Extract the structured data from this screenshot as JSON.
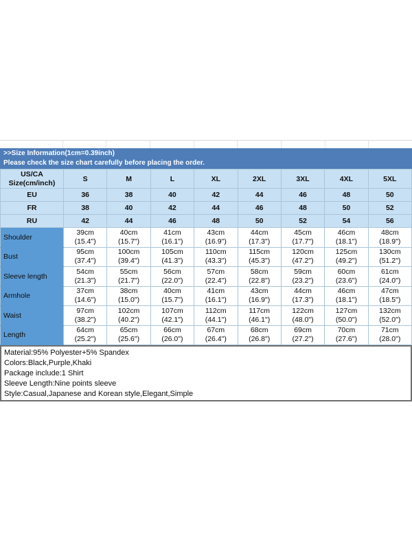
{
  "colors": {
    "banner_blue": "#4e7db8",
    "header_light_blue": "#c8e0f3",
    "row_label_blue": "#5b9bd5",
    "table_border": "#aac4da",
    "details_border": "#6f6f6f"
  },
  "banner": {
    "line1": ">>Size Information(1cm=0.39inch)",
    "line2": "Please check the size chart carefully before placing the order."
  },
  "size_table": {
    "corner_label_line1": "US/CA",
    "corner_label_line2": "Size(cm/inch)",
    "columns": [
      "S",
      "M",
      "L",
      "XL",
      "2XL",
      "3XL",
      "4XL",
      "5XL"
    ],
    "region_rows": [
      {
        "label": "EU",
        "values": [
          "36",
          "38",
          "40",
          "42",
          "44",
          "46",
          "48",
          "50"
        ]
      },
      {
        "label": "FR",
        "values": [
          "38",
          "40",
          "42",
          "44",
          "46",
          "48",
          "50",
          "52"
        ]
      },
      {
        "label": "RU",
        "values": [
          "42",
          "44",
          "46",
          "48",
          "50",
          "52",
          "54",
          "56"
        ]
      }
    ],
    "measurement_rows": [
      {
        "label": "Shoulder",
        "cm": [
          "39cm",
          "40cm",
          "41cm",
          "43cm",
          "44cm",
          "45cm",
          "46cm",
          "48cm"
        ],
        "inch": [
          "(15.4\")",
          "(15.7\")",
          "(16.1\")",
          "(16.9\")",
          "(17.3\")",
          "(17.7\")",
          "(18.1\")",
          "(18.9\")"
        ]
      },
      {
        "label": "Bust",
        "cm": [
          "95cm",
          "100cm",
          "105cm",
          "110cm",
          "115cm",
          "120cm",
          "125cm",
          "130cm"
        ],
        "inch": [
          "(37.4\")",
          "(39.4\")",
          "(41.3\")",
          "(43.3\")",
          "(45.3\")",
          "(47.2\")",
          "(49.2\")",
          "(51.2\")"
        ]
      },
      {
        "label": "Sleeve length",
        "cm": [
          "54cm",
          "55cm",
          "56cm",
          "57cm",
          "58cm",
          "59cm",
          "60cm",
          "61cm"
        ],
        "inch": [
          "(21.3\")",
          "(21.7\")",
          "(22.0\")",
          "(22.4\")",
          "(22.8\")",
          "(23.2\")",
          "(23.6\")",
          "(24.0\")"
        ]
      },
      {
        "label": "Armhole",
        "cm": [
          "37cm",
          "38cm",
          "40cm",
          "41cm",
          "43cm",
          "44cm",
          "46cm",
          "47cm"
        ],
        "inch": [
          "(14.6\")",
          "(15.0\")",
          "(15.7\")",
          "(16.1\")",
          "(16.9\")",
          "(17.3\")",
          "(18.1\")",
          "(18.5\")"
        ]
      },
      {
        "label": "Waist",
        "cm": [
          "97cm",
          "102cm",
          "107cm",
          "112cm",
          "117cm",
          "122cm",
          "127cm",
          "132cm"
        ],
        "inch": [
          "(38.2\")",
          "(40.2\")",
          "(42.1\")",
          "(44.1\")",
          "(46.1\")",
          "(48.0\")",
          "(50.0\")",
          "(52.0\")"
        ]
      },
      {
        "label": "Length",
        "cm": [
          "64cm",
          "65cm",
          "66cm",
          "67cm",
          "68cm",
          "69cm",
          "70cm",
          "71cm"
        ],
        "inch": [
          "(25.2\")",
          "(25.6\")",
          "(26.0\")",
          "(26.4\")",
          "(26.8\")",
          "(27.2\")",
          "(27.6\")",
          "(28.0\")"
        ]
      }
    ]
  },
  "details": {
    "lines": [
      "Material:95% Polyester+5% Spandex",
      "Colors:Black,Purple,Khaki",
      "Package include:1 Shirt",
      "Sleeve Length:Nine points sleeve",
      "Style:Casual,Japanese and Korean style,Elegant,Simple"
    ]
  }
}
